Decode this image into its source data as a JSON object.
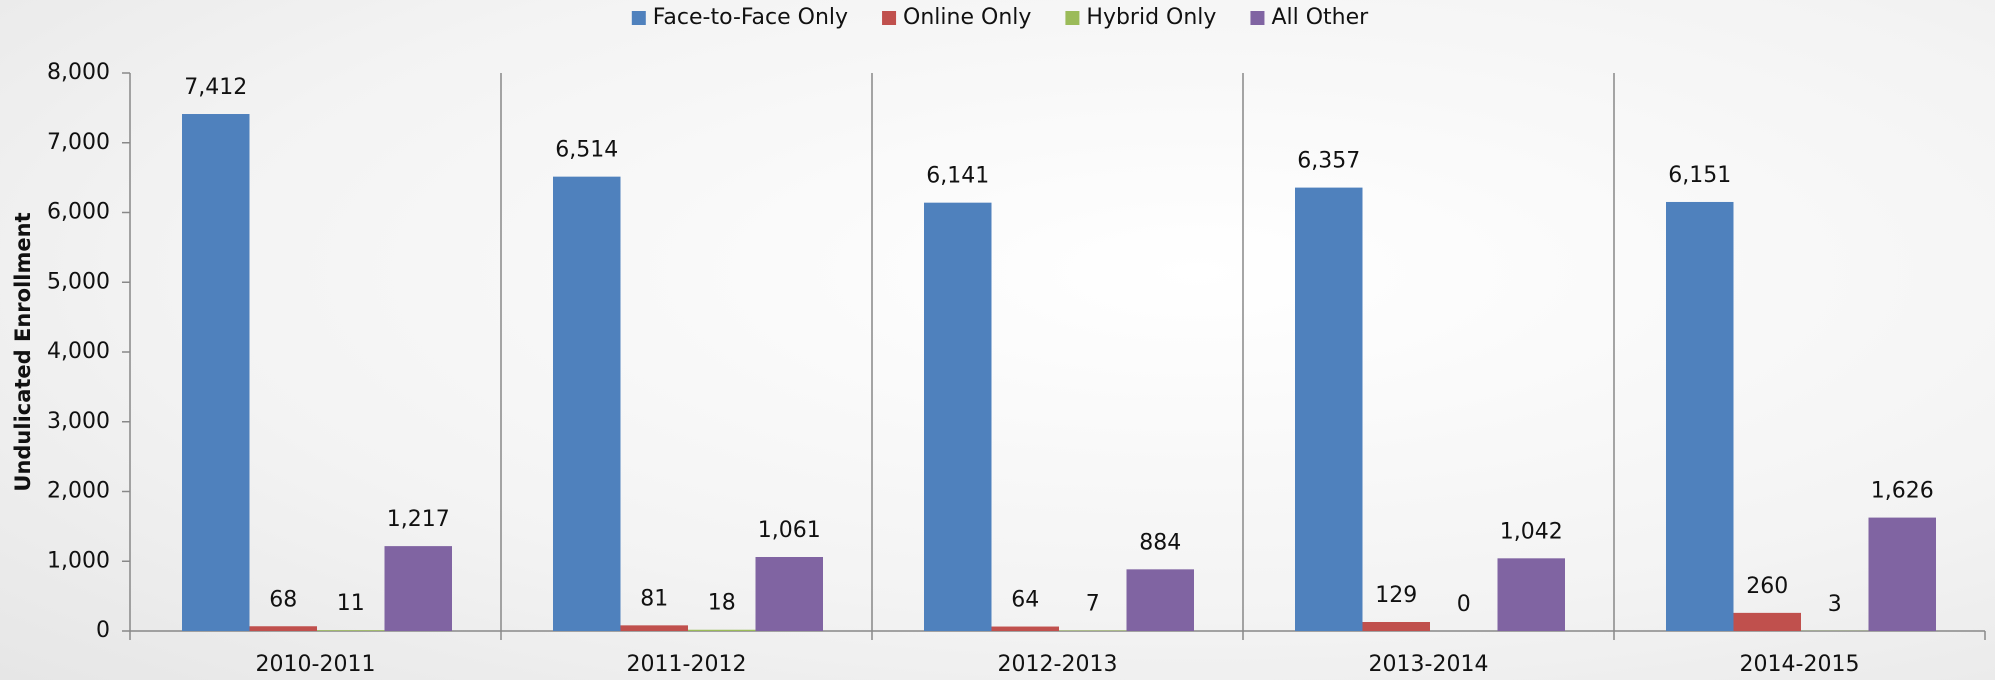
{
  "chart_data": {
    "type": "bar",
    "y_label": "Undulicated Enrollment",
    "categories": [
      "2010-2011",
      "2011-2012",
      "2012-2013",
      "2013-2014",
      "2014-2015"
    ],
    "series": [
      {
        "name": "Face-to-Face Only",
        "color": "#4f81bd",
        "values": [
          7412,
          6514,
          6141,
          6357,
          6151
        ],
        "value_labels": [
          "7,412",
          "6,514",
          "6,141",
          "6,357",
          "6,151"
        ]
      },
      {
        "name": "Online Only",
        "color": "#c0504d",
        "values": [
          68,
          81,
          64,
          129,
          260
        ],
        "value_labels": [
          "68",
          "81",
          "64",
          "129",
          "260"
        ]
      },
      {
        "name": "Hybrid Only",
        "color": "#9bbb59",
        "values": [
          11,
          18,
          7,
          0,
          3
        ],
        "value_labels": [
          "11",
          "18",
          "7",
          "0",
          "3"
        ]
      },
      {
        "name": "All Other",
        "color": "#8064a2",
        "values": [
          1217,
          1061,
          884,
          1042,
          1626
        ],
        "value_labels": [
          "1,217",
          "1,061",
          "884",
          "1,042",
          "1,626"
        ]
      }
    ],
    "ylim": [
      0,
      8000
    ],
    "yticks": [
      0,
      {
        "value": 1000,
        "label": "1,000"
      },
      {
        "value": 2000,
        "label": "2,000"
      },
      {
        "value": 3000,
        "label": "3,000"
      },
      {
        "value": 4000,
        "label": "4,000"
      },
      {
        "value": 5000,
        "label": "5,000"
      },
      {
        "value": 6000,
        "label": "6,000"
      },
      {
        "value": 7000,
        "label": "7,000"
      },
      {
        "value": 8000,
        "label": "8,000"
      }
    ],
    "grid": false,
    "legend": "top"
  }
}
